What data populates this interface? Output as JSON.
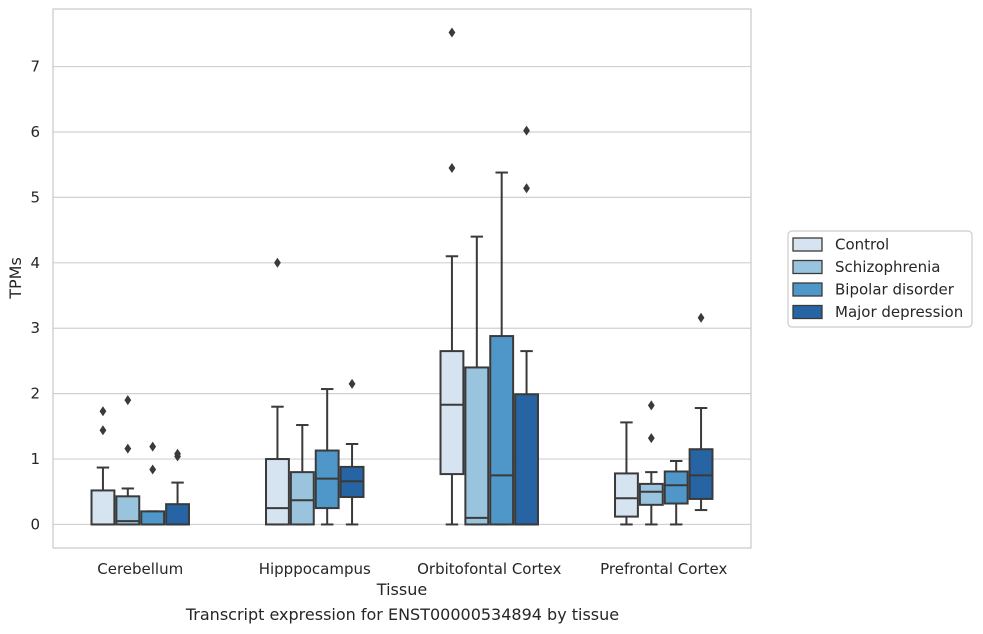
{
  "caption": "Transcript expression for ENST00000534894 by tissue",
  "chart_data": {
    "type": "box",
    "xlabel": "Tissue",
    "ylabel": "TPMs",
    "ylim": [
      -0.36,
      7.88
    ],
    "yticks": [
      0,
      1,
      2,
      3,
      4,
      5,
      6,
      7
    ],
    "grid": "horizontal",
    "legend_position": "right",
    "categories": [
      "Cerebellum",
      "Hipppocampus",
      "Orbitofontal Cortex",
      "Prefrontal Cortex"
    ],
    "series": [
      {
        "name": "Control",
        "color": "#d6e3f1",
        "boxes": [
          {
            "whislo": 0,
            "q1": 0,
            "median": 0,
            "q3": 0.52,
            "whishi": 0.87,
            "fliers": [
              1.44,
              1.73
            ]
          },
          {
            "whislo": 0,
            "q1": 0,
            "median": 0.25,
            "q3": 1.0,
            "whishi": 1.8,
            "fliers": [
              4.0
            ]
          },
          {
            "whislo": 0,
            "q1": 0.77,
            "median": 1.83,
            "q3": 2.65,
            "whishi": 4.1,
            "fliers": [
              5.45,
              7.52
            ]
          },
          {
            "whislo": 0,
            "q1": 0.12,
            "median": 0.4,
            "q3": 0.78,
            "whishi": 1.56,
            "fliers": []
          }
        ]
      },
      {
        "name": "Schizophrenia",
        "color": "#9ac4de",
        "boxes": [
          {
            "whislo": 0,
            "q1": 0,
            "median": 0.05,
            "q3": 0.43,
            "whishi": 0.55,
            "fliers": [
              1.16,
              1.9
            ]
          },
          {
            "whislo": 0,
            "q1": 0,
            "median": 0.37,
            "q3": 0.8,
            "whishi": 1.52,
            "fliers": []
          },
          {
            "whislo": 0,
            "q1": 0,
            "median": 0.1,
            "q3": 2.4,
            "whishi": 4.4,
            "fliers": []
          },
          {
            "whislo": 0,
            "q1": 0.3,
            "median": 0.5,
            "q3": 0.62,
            "whishi": 0.8,
            "fliers": [
              1.32,
              1.82
            ]
          }
        ]
      },
      {
        "name": "Bipolar disorder",
        "color": "#5097c9",
        "boxes": [
          {
            "whislo": 0,
            "q1": 0,
            "median": 0,
            "q3": 0.2,
            "whishi": 0.2,
            "fliers": [
              0.84,
              1.19
            ]
          },
          {
            "whislo": 0,
            "q1": 0.25,
            "median": 0.7,
            "q3": 1.13,
            "whishi": 2.07,
            "fliers": []
          },
          {
            "whislo": 0,
            "q1": 0,
            "median": 0.75,
            "q3": 2.88,
            "whishi": 5.38,
            "fliers": []
          },
          {
            "whislo": 0,
            "q1": 0.32,
            "median": 0.6,
            "q3": 0.81,
            "whishi": 0.97,
            "fliers": []
          }
        ]
      },
      {
        "name": "Major depression",
        "color": "#2664a3",
        "boxes": [
          {
            "whislo": 0,
            "q1": 0,
            "median": 0,
            "q3": 0.31,
            "whishi": 0.64,
            "fliers": [
              1.04,
              1.08
            ]
          },
          {
            "whislo": 0,
            "q1": 0.42,
            "median": 0.66,
            "q3": 0.88,
            "whishi": 1.23,
            "fliers": [
              2.15
            ]
          },
          {
            "whislo": 0,
            "q1": 0,
            "median": 0,
            "q3": 1.99,
            "whishi": 2.65,
            "fliers": [
              5.14,
              6.02
            ]
          },
          {
            "whislo": 0.22,
            "q1": 0.39,
            "median": 0.75,
            "q3": 1.15,
            "whishi": 1.78,
            "fliers": [
              3.16
            ]
          }
        ]
      }
    ]
  }
}
